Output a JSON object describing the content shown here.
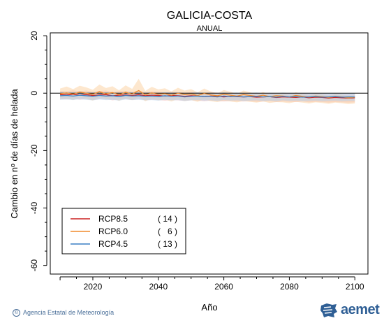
{
  "chart_data": {
    "type": "line",
    "title": "GALICIA-COSTA",
    "subtitle": "ANUAL",
    "xlabel": "Año",
    "ylabel": "Cambio en nº de días de helada",
    "xlim": [
      2007,
      2104
    ],
    "ylim": [
      -63,
      21
    ],
    "xticks": [
      2020,
      2040,
      2060,
      2080,
      2100
    ],
    "yticks": [
      20,
      0,
      -20,
      -40,
      -60
    ],
    "reference_line": 0,
    "legend_position": "bottom-left",
    "x": [
      2010,
      2012,
      2014,
      2016,
      2018,
      2020,
      2022,
      2024,
      2026,
      2028,
      2030,
      2032,
      2034,
      2036,
      2038,
      2040,
      2042,
      2044,
      2046,
      2048,
      2050,
      2052,
      2054,
      2056,
      2058,
      2060,
      2062,
      2064,
      2066,
      2068,
      2070,
      2072,
      2074,
      2076,
      2078,
      2080,
      2082,
      2084,
      2086,
      2088,
      2090,
      2092,
      2094,
      2096,
      2098,
      2100
    ],
    "series": [
      {
        "name": "RCP8.5",
        "count": "( 14 )",
        "color": "#cc2222",
        "band_color": "#f2b8b8",
        "values": [
          -0.5,
          -0.6,
          -0.4,
          -0.7,
          -0.5,
          -0.8,
          -0.6,
          -0.5,
          -0.9,
          -0.7,
          -0.6,
          -0.8,
          -0.5,
          -0.9,
          -0.7,
          -0.8,
          -1.0,
          -0.8,
          -0.9,
          -1.1,
          -0.9,
          -1.0,
          -1.2,
          -1.0,
          -1.1,
          -1.3,
          -1.1,
          -1.2,
          -1.3,
          -1.2,
          -1.4,
          -1.3,
          -1.2,
          -1.5,
          -1.3,
          -1.4,
          -1.5,
          -1.3,
          -1.6,
          -1.4,
          -1.5,
          -1.7,
          -1.5,
          -1.6,
          -1.7,
          -1.6
        ],
        "lower": [
          -2.0,
          -2.2,
          -1.9,
          -2.3,
          -2.0,
          -2.4,
          -2.1,
          -2.0,
          -2.5,
          -2.2,
          -2.1,
          -2.4,
          -2.0,
          -2.5,
          -2.3,
          -2.4,
          -2.6,
          -2.4,
          -2.5,
          -2.7,
          -2.5,
          -2.6,
          -2.8,
          -2.6,
          -2.7,
          -2.9,
          -2.7,
          -2.8,
          -2.9,
          -2.8,
          -3.0,
          -2.9,
          -2.8,
          -3.1,
          -2.9,
          -3.0,
          -3.1,
          -2.9,
          -3.2,
          -3.0,
          -3.1,
          -3.3,
          -3.1,
          -3.2,
          -3.3,
          -3.2
        ],
        "upper": [
          0.8,
          0.7,
          1.0,
          0.6,
          0.9,
          0.5,
          0.8,
          0.9,
          0.4,
          0.7,
          0.8,
          0.5,
          0.9,
          0.4,
          0.6,
          0.5,
          0.3,
          0.5,
          0.4,
          0.2,
          0.4,
          0.3,
          0.1,
          0.3,
          0.2,
          0.0,
          0.2,
          0.1,
          0.0,
          0.1,
          -0.1,
          0.0,
          0.1,
          -0.2,
          0.0,
          -0.1,
          -0.2,
          0.0,
          -0.3,
          -0.1,
          -0.2,
          -0.4,
          -0.2,
          -0.3,
          -0.4,
          -0.3
        ]
      },
      {
        "name": "RCP6.0",
        "count": "(   6 )",
        "color": "#f08a2c",
        "band_color": "#fbd3a6",
        "values": [
          -0.2,
          0.1,
          -0.3,
          0.4,
          0.0,
          -0.4,
          0.5,
          -0.2,
          0.2,
          -0.5,
          0.3,
          -0.3,
          0.9,
          -0.6,
          0.1,
          -0.4,
          -0.2,
          -0.7,
          0.0,
          -0.5,
          -0.3,
          -0.8,
          -0.1,
          -0.6,
          -0.9,
          -0.4,
          -0.7,
          -1.0,
          -0.5,
          -0.8,
          -1.1,
          -0.7,
          -1.2,
          -0.9,
          -1.0,
          -1.3,
          -0.8,
          -1.1,
          -1.4,
          -1.0,
          -1.2,
          -1.5,
          -1.1,
          -1.3,
          -1.6,
          -1.4
        ],
        "lower": [
          -2.2,
          -1.8,
          -2.4,
          -1.5,
          -2.0,
          -2.6,
          -1.4,
          -2.2,
          -1.8,
          -2.7,
          -1.6,
          -2.4,
          -1.2,
          -2.8,
          -1.9,
          -2.5,
          -2.2,
          -2.9,
          -2.0,
          -2.7,
          -2.4,
          -3.0,
          -2.1,
          -2.8,
          -3.1,
          -2.6,
          -2.9,
          -3.2,
          -2.7,
          -3.0,
          -3.3,
          -2.9,
          -3.4,
          -3.1,
          -3.2,
          -3.5,
          -3.0,
          -3.3,
          -3.6,
          -3.2,
          -3.4,
          -3.7,
          -3.3,
          -3.5,
          -3.8,
          -3.6
        ],
        "upper": [
          1.6,
          2.3,
          1.4,
          2.6,
          2.0,
          1.2,
          3.0,
          1.8,
          2.4,
          1.0,
          2.7,
          1.5,
          5.0,
          0.8,
          2.2,
          1.3,
          1.7,
          0.6,
          1.9,
          0.9,
          1.4,
          0.3,
          1.6,
          0.6,
          -0.1,
          1.1,
          0.5,
          -0.2,
          0.9,
          0.3,
          -0.3,
          0.4,
          -0.5,
          0.1,
          -0.1,
          -0.6,
          0.3,
          -0.3,
          -0.7,
          -0.1,
          -0.4,
          -0.9,
          -0.2,
          -0.5,
          -1.0,
          -0.7
        ]
      },
      {
        "name": "RCP4.5",
        "count": "( 13 )",
        "color": "#3a7fc4",
        "band_color": "#b5d1ec",
        "values": [
          -0.9,
          -0.8,
          -1.0,
          -0.7,
          -0.9,
          -1.1,
          -0.8,
          -1.0,
          -0.9,
          -1.2,
          -0.8,
          -1.0,
          -0.9,
          -1.1,
          -1.0,
          -1.2,
          -0.9,
          -1.1,
          -1.0,
          -1.3,
          -1.1,
          -1.0,
          -1.2,
          -1.1,
          -1.3,
          -1.0,
          -1.2,
          -1.1,
          -1.3,
          -1.2,
          -1.1,
          -1.3,
          -1.2,
          -1.4,
          -1.1,
          -1.3,
          -1.2,
          -1.4,
          -1.3,
          -1.2,
          -1.4,
          -1.3,
          -1.2,
          -1.4,
          -1.3,
          -1.3
        ],
        "lower": [
          -2.3,
          -2.2,
          -2.4,
          -2.1,
          -2.3,
          -2.5,
          -2.2,
          -2.4,
          -2.3,
          -2.6,
          -2.2,
          -2.4,
          -2.3,
          -2.5,
          -2.4,
          -2.6,
          -2.3,
          -2.5,
          -2.4,
          -2.7,
          -2.5,
          -2.4,
          -2.6,
          -2.5,
          -2.7,
          -2.4,
          -2.6,
          -2.5,
          -2.7,
          -2.6,
          -2.5,
          -2.7,
          -2.6,
          -2.8,
          -2.5,
          -2.7,
          -2.6,
          -2.8,
          -2.7,
          -2.6,
          -2.8,
          -2.7,
          -2.6,
          -2.8,
          -2.7,
          -2.7
        ],
        "upper": [
          0.4,
          0.5,
          0.3,
          0.6,
          0.4,
          0.2,
          0.5,
          0.3,
          0.4,
          0.1,
          0.5,
          0.3,
          0.4,
          0.2,
          0.3,
          0.1,
          0.4,
          0.2,
          0.3,
          0.0,
          0.2,
          0.3,
          0.1,
          0.2,
          0.0,
          0.3,
          0.1,
          0.2,
          0.0,
          0.1,
          0.2,
          0.0,
          0.1,
          -0.1,
          0.2,
          0.0,
          0.1,
          -0.1,
          0.0,
          0.1,
          -0.1,
          0.0,
          0.1,
          -0.1,
          0.0,
          0.0
        ]
      }
    ]
  },
  "footer": {
    "credit_symbol": "©",
    "credit": "Agencia Estatal de Meteorología",
    "brand": "aemet",
    "brand_color": "#2f5f95"
  }
}
